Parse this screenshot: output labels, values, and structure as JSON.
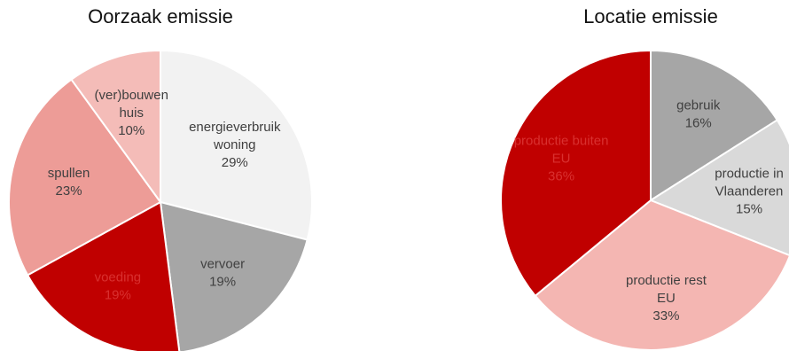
{
  "chart_data": [
    {
      "type": "pie",
      "title": "Oorzaak emissie",
      "slices": [
        {
          "lines": [
            "energieverbruik",
            "woning",
            "29%"
          ],
          "value": 29,
          "color": "#f2f2f2",
          "label_color": "#404040"
        },
        {
          "lines": [
            "vervoer",
            "19%"
          ],
          "value": 19,
          "color": "#a6a6a6",
          "label_color": "#404040"
        },
        {
          "lines": [
            "voeding",
            "19%"
          ],
          "value": 19,
          "color": "#c00000",
          "label_color": "#d9302f"
        },
        {
          "lines": [
            "spullen",
            "23%"
          ],
          "value": 23,
          "color": "#ed9c97",
          "label_color": "#404040"
        },
        {
          "lines": [
            "(ver)bouwen",
            "huis",
            "10%"
          ],
          "value": 10,
          "color": "#f4bcb8",
          "label_color": "#404040"
        }
      ]
    },
    {
      "type": "pie",
      "title": "Locatie emissie",
      "slices": [
        {
          "lines": [
            "gebruik",
            "16%"
          ],
          "value": 16,
          "color": "#a6a6a6",
          "label_color": "#404040"
        },
        {
          "lines": [
            "productie in",
            "Vlaanderen",
            "15%"
          ],
          "value": 15,
          "color": "#d9d9d9",
          "label_color": "#404040"
        },
        {
          "lines": [
            "productie rest",
            "EU",
            "33%"
          ],
          "value": 33,
          "color": "#f4b6b2",
          "label_color": "#404040"
        },
        {
          "lines": [
            "productie buiten",
            "EU",
            "36%"
          ],
          "value": 36,
          "color": "#c00000",
          "label_color": "#d9302f"
        }
      ]
    }
  ]
}
